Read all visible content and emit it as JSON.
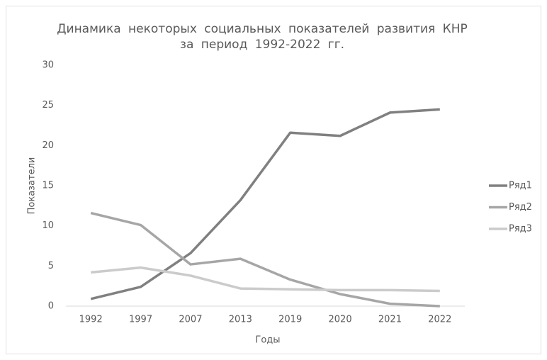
{
  "chart_data": {
    "type": "line",
    "title": "Динамика некоторых социальных показателей развития КНР за период 1992-2022 гг.",
    "x_label": "Годы",
    "y_label": "Показатели",
    "categories": [
      "1992",
      "1997",
      "2007",
      "2013",
      "2019",
      "2020",
      "2021",
      "2022"
    ],
    "series": [
      {
        "name": "Ряд1",
        "color": "#808080",
        "values": [
          0.9,
          2.4,
          6.6,
          13.2,
          21.6,
          21.2,
          24.1,
          24.5
        ]
      },
      {
        "name": "Ряд2",
        "color": "#a6a6a6",
        "values": [
          11.6,
          10.1,
          5.2,
          5.9,
          3.3,
          1.5,
          0.3,
          0.0
        ]
      },
      {
        "name": "Ряд3",
        "color": "#cbcbcb",
        "values": [
          4.2,
          4.8,
          3.8,
          2.2,
          2.1,
          2.0,
          2.0,
          1.9
        ]
      }
    ],
    "ylim": [
      0,
      30
    ],
    "yticks": [
      0,
      5,
      10,
      15,
      20,
      25,
      30
    ],
    "grid": false,
    "legend": "right"
  }
}
